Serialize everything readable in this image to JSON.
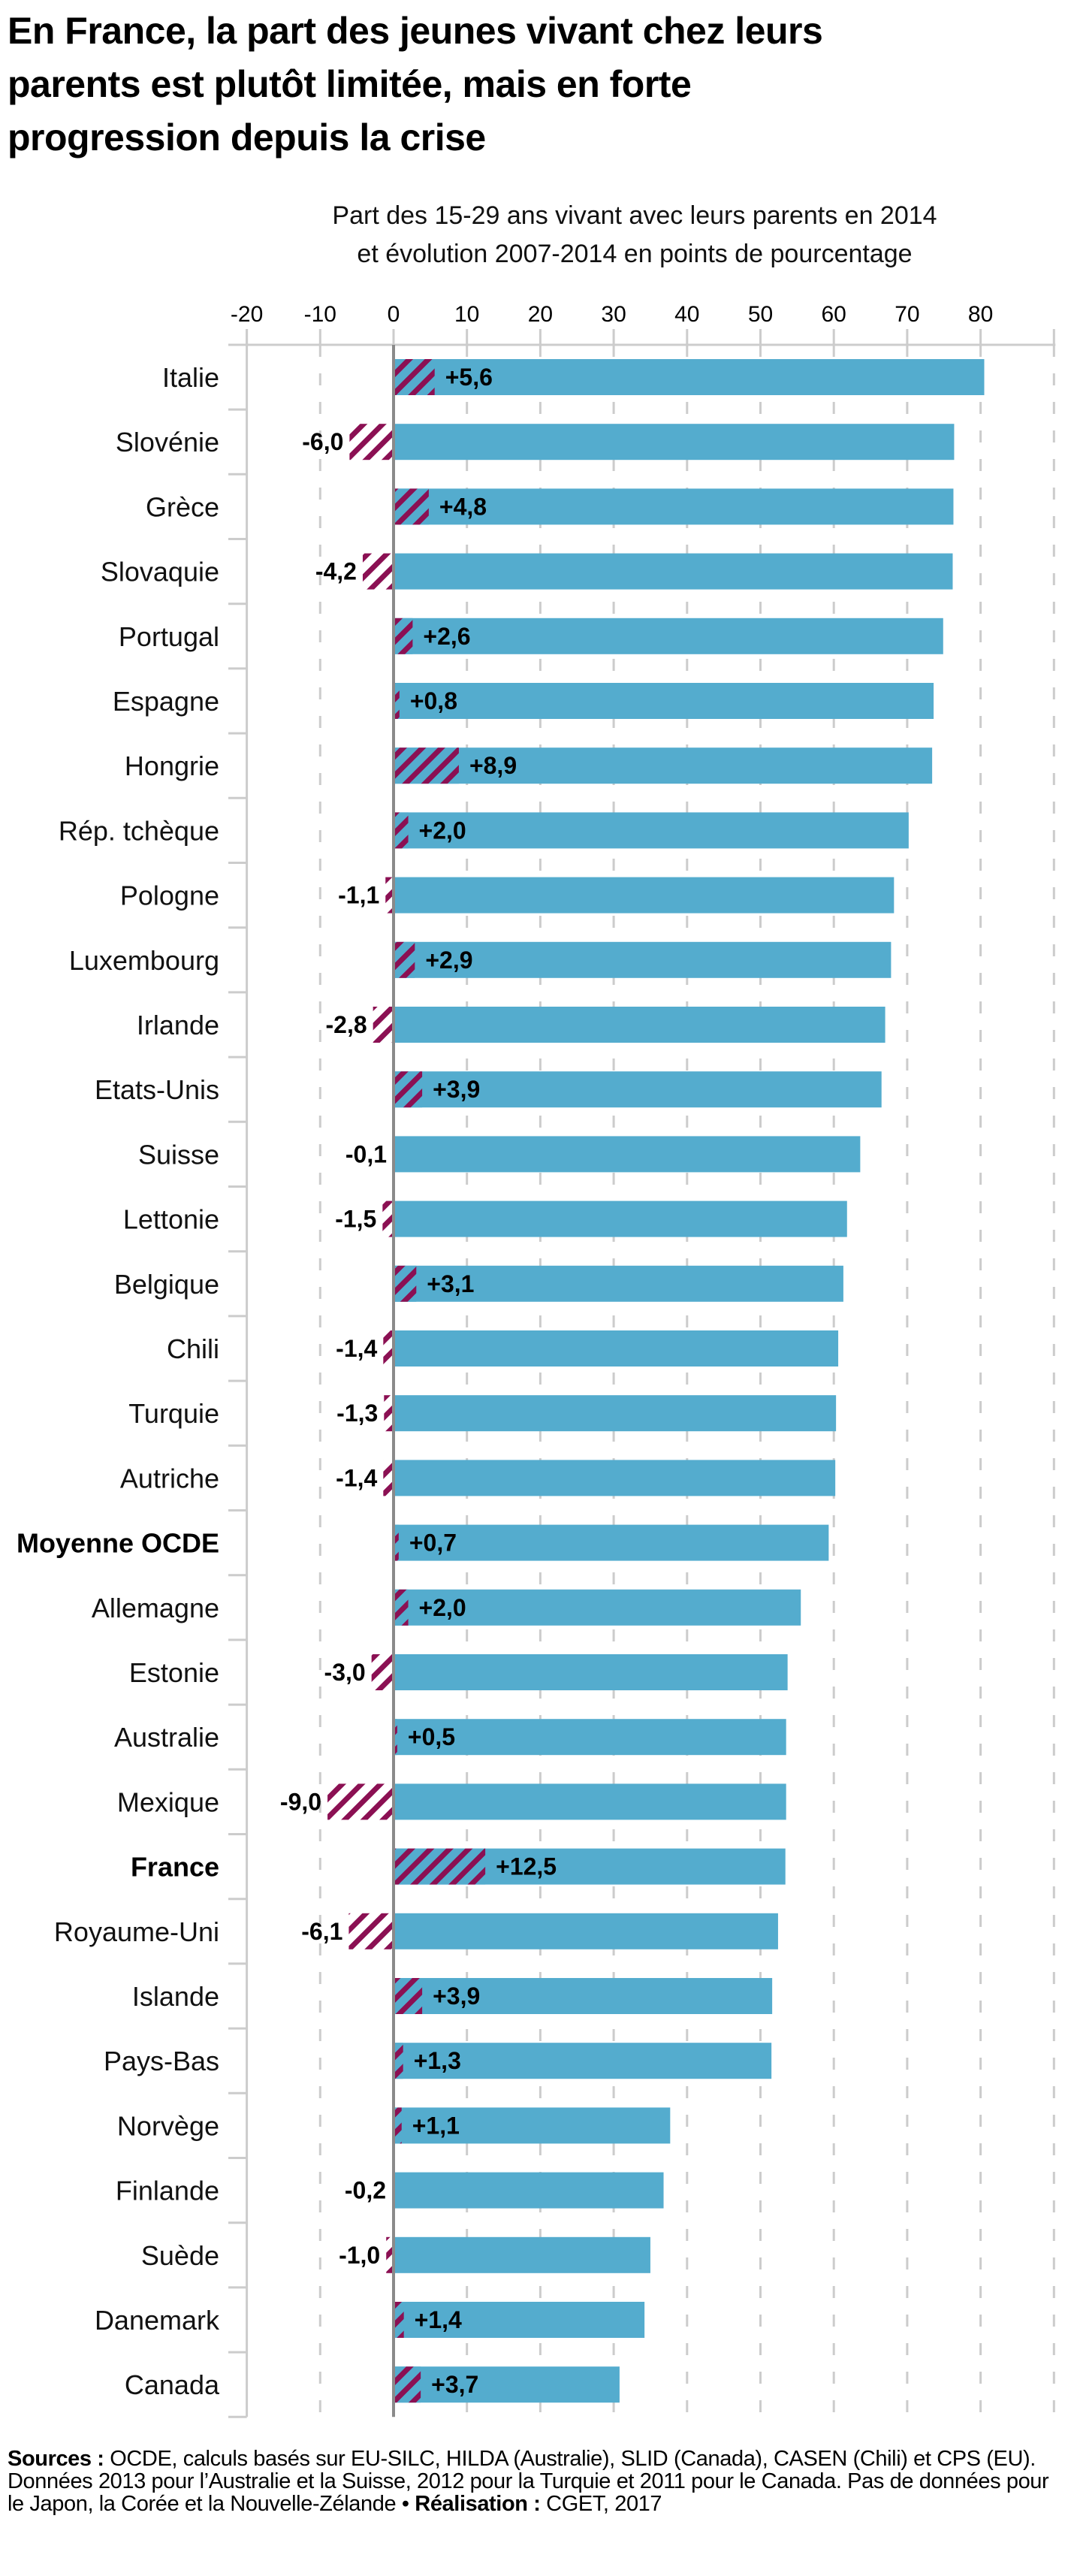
{
  "header": {
    "title_lines": [
      "En France, la part des jeunes vivant chez leurs",
      "parents est plutôt limitée, mais en forte",
      "progression depuis la crise"
    ]
  },
  "chart_data": {
    "type": "bar",
    "orientation": "horizontal",
    "title": "En France, la part des jeunes vivant chez leurs parents est plutôt limitée, mais en forte progression depuis la crise",
    "subtitle_lines": [
      "Part des 15-29 ans vivant avec leurs parents en 2014",
      "et évolution 2007-2014 en points de pourcentage"
    ],
    "xlabel": "",
    "ylabel": "",
    "xlim": [
      -20,
      90
    ],
    "x_ticks": [
      -20,
      -10,
      0,
      10,
      20,
      30,
      40,
      50,
      60,
      70,
      80
    ],
    "x_tick_labels": [
      "-20",
      "-10",
      "0",
      "10",
      "20",
      "30",
      "40",
      "50",
      "60",
      "70",
      "80"
    ],
    "grid": true,
    "legend": "none",
    "colors": {
      "share_2014": "#54acce",
      "change_hatch": "#8b1053",
      "zero_line": "#8a8a8a",
      "grid": "#cccccc"
    },
    "categories": [
      "Italie",
      "Slovénie",
      "Grèce",
      "Slovaquie",
      "Portugal",
      "Espagne",
      "Hongrie",
      "Rép. tchèque",
      "Pologne",
      "Luxembourg",
      "Irlande",
      "Etats-Unis",
      "Suisse",
      "Lettonie",
      "Belgique",
      "Chili",
      "Turquie",
      "Autriche",
      "Moyenne OCDE",
      "Allemagne",
      "Estonie",
      "Australie",
      "Mexique",
      "France",
      "Royaume-Uni",
      "Islande",
      "Pays-Bas",
      "Norvège",
      "Finlande",
      "Suède",
      "Danemark",
      "Canada"
    ],
    "highlighted_categories": [
      "Moyenne OCDE",
      "France"
    ],
    "series": [
      {
        "name": "Part des 15-29 ans vivant avec leurs parents en 2014 (%)",
        "style": "solid",
        "values": [
          80.5,
          76.4,
          76.3,
          76.2,
          74.9,
          73.6,
          73.4,
          70.2,
          68.2,
          67.8,
          67.0,
          66.5,
          63.6,
          61.8,
          61.3,
          60.6,
          60.3,
          60.2,
          59.3,
          55.5,
          53.7,
          53.5,
          53.5,
          53.4,
          52.4,
          51.6,
          51.5,
          37.7,
          36.8,
          35.0,
          34.2,
          30.8
        ]
      },
      {
        "name": "Évolution 2007-2014 (points de pourcentage)",
        "style": "hatched",
        "values": [
          5.6,
          -6.0,
          4.8,
          -4.2,
          2.6,
          0.8,
          8.9,
          2.0,
          -1.1,
          2.9,
          -2.8,
          3.9,
          -0.1,
          -1.5,
          3.1,
          -1.4,
          -1.3,
          -1.4,
          0.7,
          2.0,
          -3.0,
          0.5,
          -9.0,
          12.5,
          -6.1,
          3.9,
          1.3,
          1.1,
          -0.2,
          -1.0,
          1.4,
          3.7
        ],
        "labels": [
          "+5,6",
          "-6,0",
          "+4,8",
          "-4,2",
          "+2,6",
          "+0,8",
          "+8,9",
          "+2,0",
          "-1,1",
          "+2,9",
          "-2,8",
          "+3,9",
          "-0,1",
          "-1,5",
          "+3,1",
          "-1,4",
          "-1,3",
          "-1,4",
          "+0,7",
          "+2,0",
          "-3,0",
          "+0,5",
          "-9,0",
          "+12,5",
          "-6,1",
          "+3,9",
          "+1,3",
          "+1,1",
          "-0,2",
          "-1,0",
          "+1,4",
          "+3,7"
        ]
      }
    ]
  },
  "footer": {
    "sources_label": "Sources :",
    "sources_text": " OCDE, calculs basés sur EU-SILC, HILDA (Australie), SLID (Canada), CASEN (Chili) et CPS (EU). Données 2013 pour l’Australie et la Suisse, 2012 pour la Turquie et 2011 pour le Canada. Pas de données pour le Japon, la Corée et la Nouvelle-Zélande",
    "separator": " • ",
    "credit_label": "Réalisation :",
    "credit_text": " CGET, 2017"
  }
}
